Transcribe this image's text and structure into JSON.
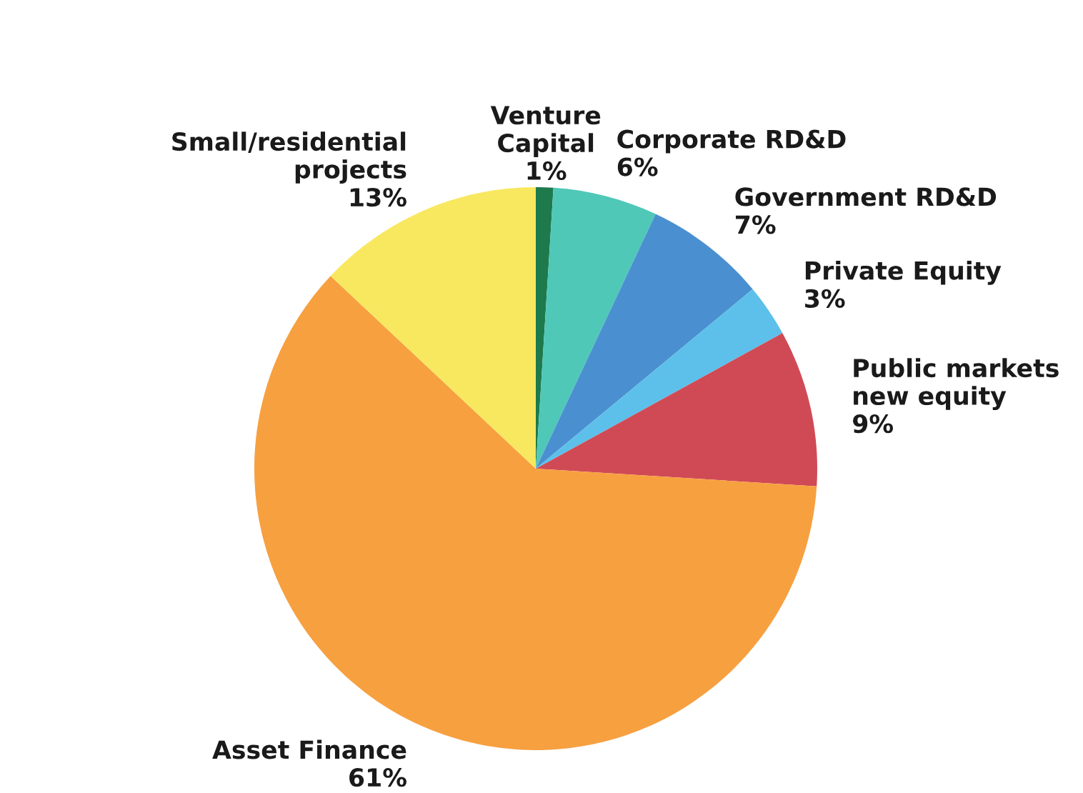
{
  "chart_data": {
    "type": "pie",
    "categories": [
      "Venture\nCapital",
      "Corporate RD&D",
      "Government RD&D",
      "Private Equity",
      "Public markets\nnew equity",
      "Asset Finance",
      "Small/residential\nprojects"
    ],
    "values": [
      1,
      6,
      7,
      3,
      9,
      61,
      13
    ],
    "value_labels": [
      "1%",
      "6%",
      "7%",
      "3%",
      "9%",
      "61%",
      "13%"
    ],
    "colors": [
      "#1e7a4c",
      "#4fc8b8",
      "#4a90d0",
      "#5cc0ea",
      "#d04a55",
      "#f7a040",
      "#f8e860"
    ]
  }
}
